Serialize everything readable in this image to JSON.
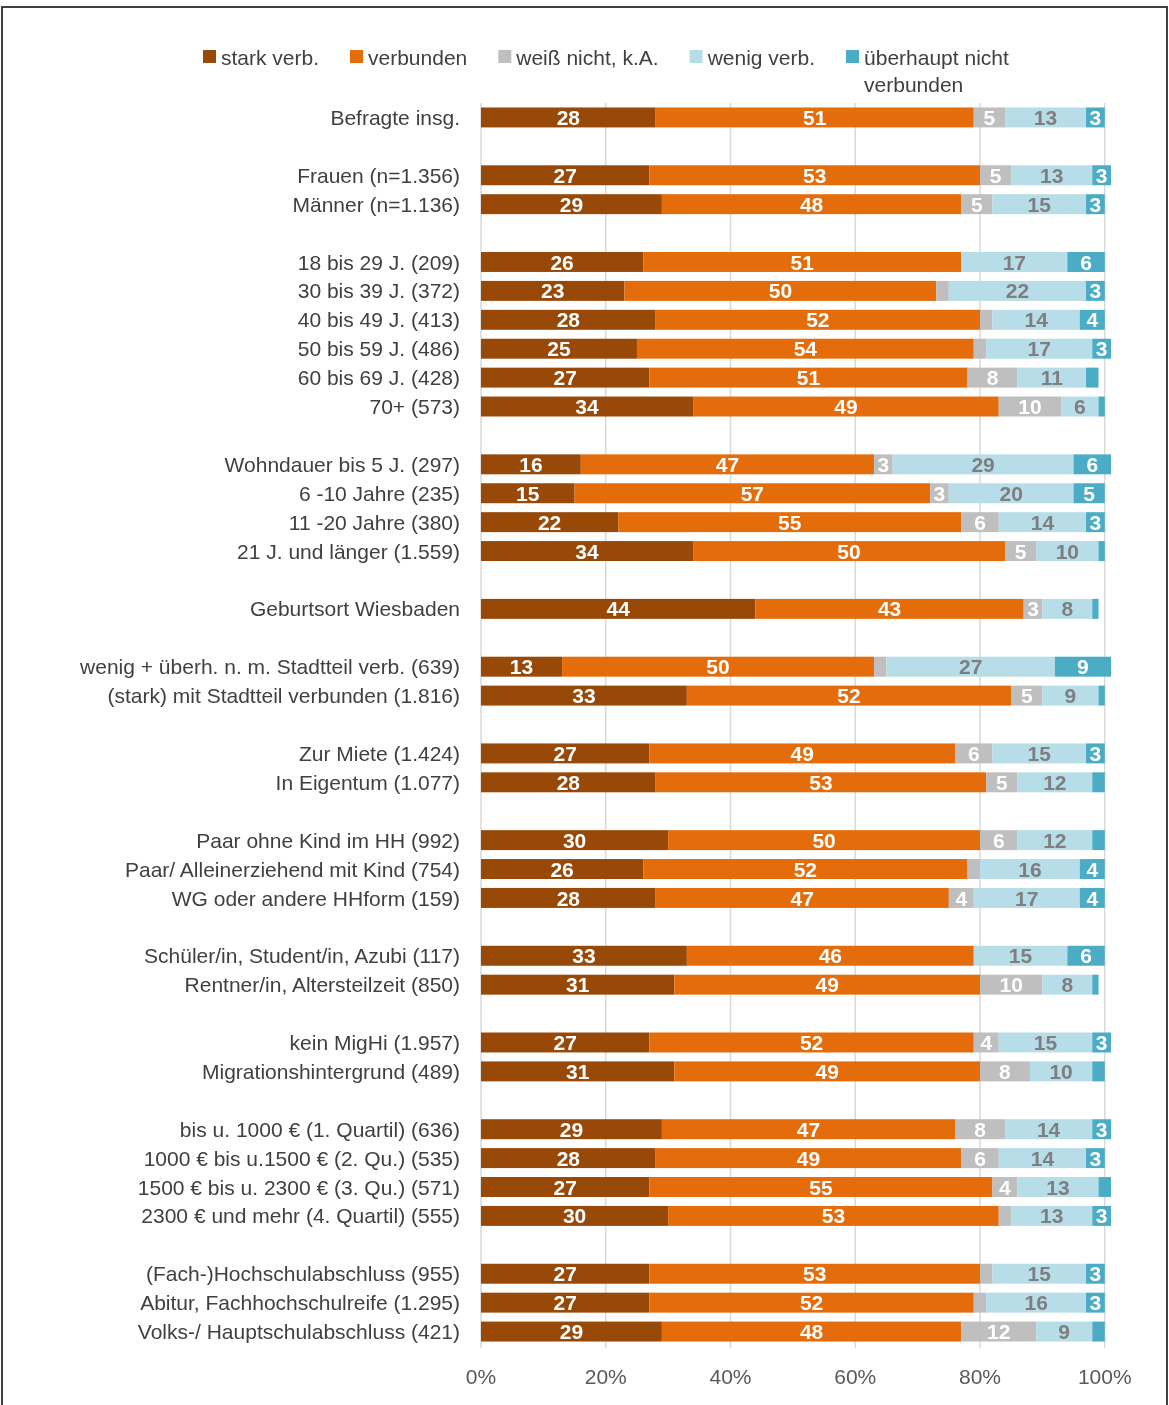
{
  "chart_data": {
    "type": "bar",
    "orientation": "horizontal",
    "stacked": true,
    "categories": [
      "Befragte insg.",
      null,
      "Frauen (n=1.356)",
      "Männer (n=1.136)",
      null,
      "18 bis 29 J. (209)",
      "30 bis 39 J. (372)",
      "40 bis 49 J. (413)",
      "50 bis 59 J. (486)",
      "60 bis 69 J. (428)",
      "70+ (573)",
      null,
      "Wohndauer bis 5 J. (297)",
      "6 -10 Jahre (235)",
      "11 -20 Jahre (380)",
      "21 J. und länger (1.559)",
      null,
      "Geburtsort Wiesbaden",
      null,
      "wenig + überh. n. m. Stadtteil verb. (639)",
      "(stark) mit Stadtteil verbunden (1.816)",
      null,
      "Zur Miete (1.424)",
      "In Eigentum (1.077)",
      null,
      "Paar ohne Kind im HH (992)",
      "Paar/ Alleinerziehend mit Kind (754)",
      "WG oder andere HHform (159)",
      null,
      "Schüler/in, Student/in, Azubi (117)",
      "Rentner/in, Altersteilzeit (850)",
      null,
      "kein MigHi (1.957)",
      "Migrationshintergrund (489)",
      null,
      "bis u. 1000 € (1. Quartil) (636)",
      "1000 € bis u.1500 € (2. Qu.) (535)",
      "1500 € bis u. 2300 € (3. Qu.) (571)",
      "2300 € und mehr (4. Quartil) (555)",
      null,
      "(Fach-)Hochschulabschluss (955)",
      "Abitur, Fachhochschulreife (1.295)",
      "Volks-/ Hauptschulabschluss (421)"
    ],
    "series": [
      {
        "name": "stark verb.",
        "color": "#984807",
        "values": [
          28,
          null,
          27,
          29,
          null,
          26,
          23,
          28,
          25,
          27,
          34,
          null,
          16,
          15,
          22,
          34,
          null,
          44,
          null,
          13,
          33,
          null,
          27,
          28,
          null,
          30,
          26,
          28,
          null,
          33,
          31,
          null,
          27,
          31,
          null,
          29,
          28,
          27,
          30,
          null,
          27,
          27,
          29
        ],
        "value_labels": [
          "28",
          null,
          "27",
          "29",
          null,
          "26",
          "23",
          "28",
          "25",
          "27",
          "34",
          null,
          "16",
          "15",
          "22",
          "34",
          null,
          "44",
          null,
          "13",
          "33",
          null,
          "27",
          "28",
          null,
          "30",
          "26",
          "28",
          null,
          "33",
          "31",
          null,
          "27",
          "31",
          null,
          "29",
          "28",
          "27",
          "30",
          null,
          "27",
          "27",
          "29"
        ]
      },
      {
        "name": "verbunden",
        "color": "#e46c0a",
        "values": [
          51,
          null,
          53,
          48,
          null,
          51,
          50,
          52,
          54,
          51,
          49,
          null,
          47,
          57,
          55,
          50,
          null,
          43,
          null,
          50,
          52,
          null,
          49,
          53,
          null,
          50,
          52,
          47,
          null,
          46,
          49,
          null,
          52,
          49,
          null,
          47,
          49,
          55,
          53,
          null,
          53,
          52,
          48
        ],
        "value_labels": [
          "51",
          null,
          "53",
          "48",
          null,
          "51",
          "50",
          "52",
          "54",
          "51",
          "49",
          null,
          "47",
          "57",
          "55",
          "50",
          null,
          "43",
          null,
          "50",
          "52",
          null,
          "49",
          "53",
          null,
          "50",
          "52",
          "47",
          null,
          "46",
          "49",
          null,
          "52",
          "49",
          null,
          "47",
          "49",
          "55",
          "53",
          null,
          "53",
          "52",
          "48"
        ]
      },
      {
        "name": "weiß nicht, k.A.",
        "color": "#bfbfbf",
        "values": [
          5,
          null,
          5,
          5,
          null,
          null,
          2,
          2,
          2,
          8,
          10,
          null,
          3,
          3,
          6,
          5,
          null,
          3,
          null,
          2,
          5,
          null,
          6,
          5,
          null,
          6,
          2,
          4,
          null,
          null,
          10,
          null,
          4,
          8,
          null,
          8,
          6,
          4,
          2,
          null,
          2,
          2,
          12
        ],
        "value_labels": [
          "5",
          null,
          "5",
          "5",
          null,
          null,
          null,
          null,
          null,
          "8",
          "10",
          null,
          "3",
          "3",
          "6",
          "5",
          null,
          "3",
          null,
          null,
          "5",
          null,
          "6",
          "5",
          null,
          "6",
          null,
          "4",
          null,
          null,
          "10",
          null,
          "4",
          "8",
          null,
          "8",
          "6",
          "4",
          null,
          null,
          null,
          null,
          "12"
        ]
      },
      {
        "name": "wenig verb.",
        "color": "#b7dde8",
        "values": [
          13,
          null,
          13,
          15,
          null,
          17,
          22,
          14,
          17,
          11,
          6,
          null,
          29,
          20,
          14,
          10,
          null,
          8,
          null,
          27,
          9,
          null,
          15,
          12,
          null,
          12,
          16,
          17,
          null,
          15,
          8,
          null,
          15,
          10,
          null,
          14,
          14,
          13,
          13,
          null,
          15,
          16,
          9
        ],
        "value_labels": [
          "13",
          null,
          "13",
          "15",
          null,
          "17",
          "22",
          "14",
          "17",
          "11",
          "6",
          null,
          "29",
          "20",
          "14",
          "10",
          null,
          "8",
          null,
          "27",
          "9",
          null,
          "15",
          "12",
          null,
          "12",
          "16",
          "17",
          null,
          "15",
          "8",
          null,
          "15",
          "10",
          null,
          "14",
          "14",
          "13",
          "13",
          null,
          "15",
          "16",
          "9"
        ]
      },
      {
        "name": "überhaupt nicht verbunden",
        "color": "#4bacc6",
        "values": [
          3,
          null,
          3,
          3,
          null,
          6,
          3,
          4,
          3,
          2,
          1,
          null,
          6,
          5,
          3,
          1,
          null,
          1,
          null,
          9,
          1,
          null,
          3,
          2,
          null,
          2,
          4,
          4,
          null,
          6,
          1,
          null,
          3,
          2,
          null,
          3,
          3,
          2,
          3,
          null,
          3,
          3,
          2
        ],
        "value_labels": [
          "3",
          null,
          "3",
          "3",
          null,
          "6",
          "3",
          "4",
          "3",
          null,
          null,
          null,
          "6",
          "5",
          "3",
          null,
          null,
          null,
          null,
          "9",
          null,
          null,
          "3",
          null,
          null,
          null,
          "4",
          "4",
          null,
          "6",
          null,
          null,
          "3",
          null,
          null,
          "3",
          "3",
          null,
          "3",
          null,
          "3",
          "3",
          null
        ]
      }
    ],
    "xlim": [
      0,
      101
    ],
    "xticks": [
      {
        "value": 0,
        "label": "0%"
      },
      {
        "value": 20,
        "label": "20%"
      },
      {
        "value": 40,
        "label": "40%"
      },
      {
        "value": 60,
        "label": "60%"
      },
      {
        "value": 80,
        "label": "80%"
      },
      {
        "value": 100,
        "label": "100%"
      }
    ],
    "grid": "x",
    "legend": "top"
  }
}
